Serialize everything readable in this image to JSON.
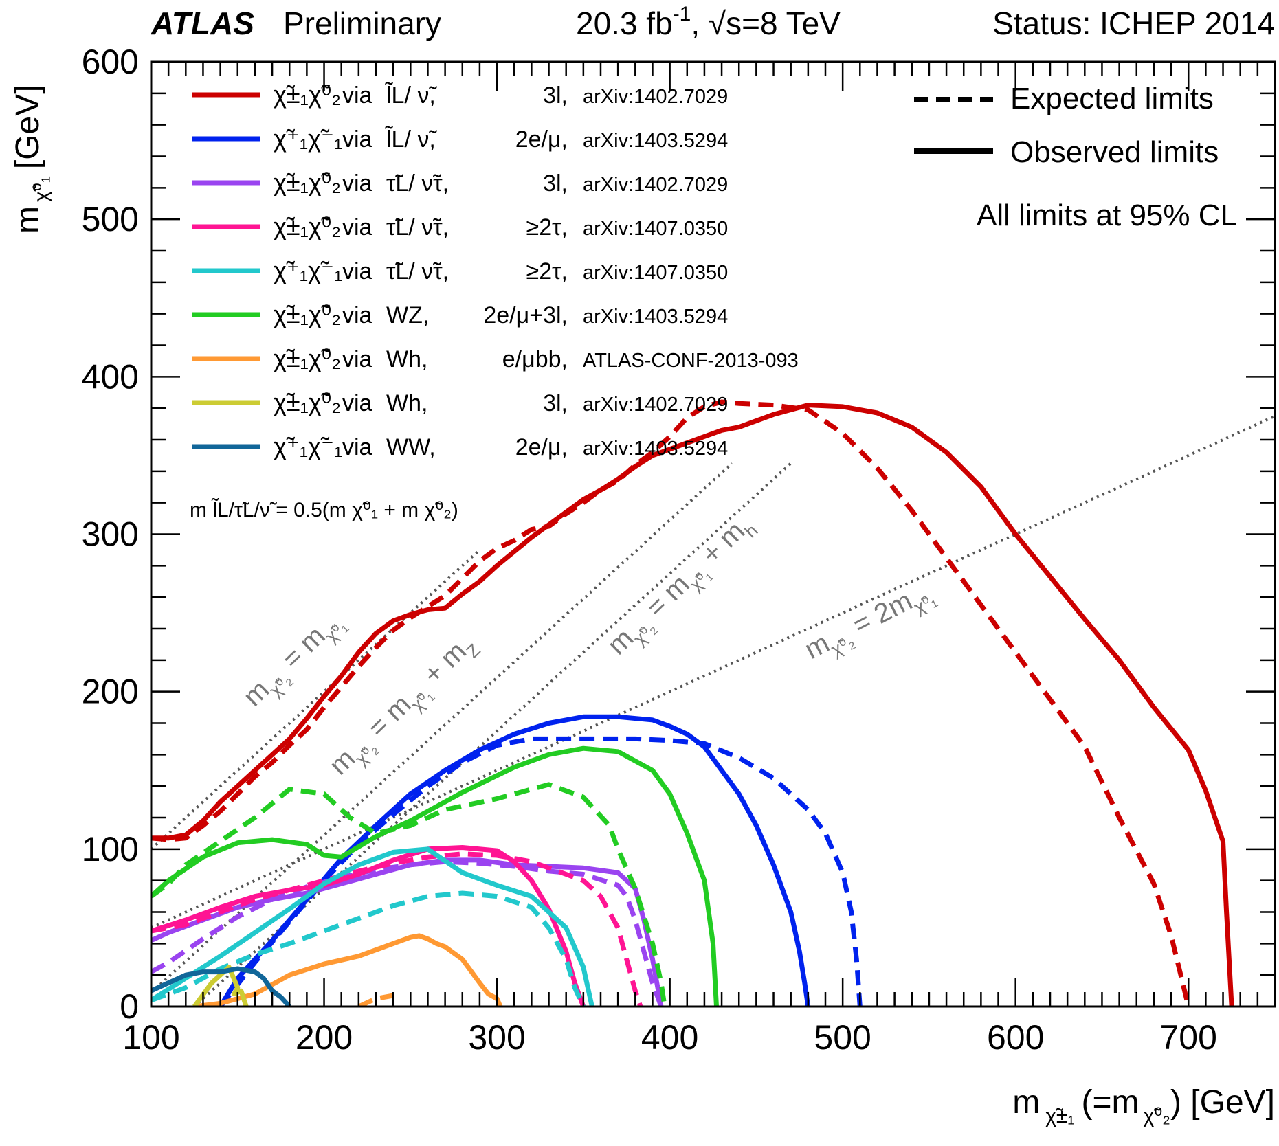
{
  "header": {
    "atlas": "ATLAS",
    "preliminary": "Preliminary",
    "lumi_base": "20.3 fb",
    "lumi_exp": "-1",
    "energy": ", √s=8 TeV",
    "status": "Status: ICHEP 2014"
  },
  "chart_data": {
    "type": "line",
    "title": "ATLAS Preliminary 20.3 fb-1, √s=8 TeV Status: ICHEP 2014",
    "xlabel": "m χ̃±₁ (=m χ̃⁰₂) [GeV]",
    "ylabel": "m χ̃⁰₁ [GeV]",
    "xlim": [
      100,
      750
    ],
    "ylim": [
      0,
      600
    ],
    "xticks": [
      100,
      200,
      300,
      400,
      500,
      600,
      700
    ],
    "xtick_labels": [
      "100",
      "200",
      "300",
      "400",
      "500",
      "600",
      "700"
    ],
    "yticks": [
      0,
      100,
      200,
      300,
      400,
      500,
      600
    ],
    "ytick_labels": [
      "0",
      "100",
      "200",
      "300",
      "400",
      "500",
      "600"
    ],
    "style_legend": {
      "expected": "Expected limits",
      "observed": "Observed limits",
      "cl_note": "All limits at 95% CL"
    },
    "legend": [
      {
        "process": "χ̃±₁χ̃⁰₂",
        "via": "via",
        "mediator": "l̃L/ ν̃,",
        "channel": "3l,",
        "ref": "arXiv:1402.7029",
        "color": "#cc0000"
      },
      {
        "process": "χ̃⁺₁χ̃⁻₁",
        "via": "via",
        "mediator": "l̃L/ ν̃,",
        "channel": "2e/μ,",
        "ref": "arXiv:1403.5294",
        "color": "#0022ee"
      },
      {
        "process": "χ̃±₁χ̃⁰₂",
        "via": "via",
        "mediator": "τ̃L/ ν̃τ,",
        "channel": "3l,",
        "ref": "arXiv:1402.7029",
        "color": "#9a44f0"
      },
      {
        "process": "χ̃±₁χ̃⁰₂",
        "via": "via",
        "mediator": "τ̃L/ ν̃τ,",
        "channel": "≥2τ,",
        "ref": "arXiv:1407.0350",
        "color": "#ff1493"
      },
      {
        "process": "χ̃⁺₁χ̃⁻₁",
        "via": "via",
        "mediator": "τ̃L/ ν̃τ,",
        "channel": "≥2τ,",
        "ref": "arXiv:1407.0350",
        "color": "#22c8cc"
      },
      {
        "process": "χ̃±₁χ̃⁰₂",
        "via": "via",
        "mediator": "WZ,",
        "channel": "2e/μ+3l,",
        "ref": "arXiv:1403.5294",
        "color": "#22cc22"
      },
      {
        "process": "χ̃±₁χ̃⁰₂",
        "via": "via",
        "mediator": "Wh,",
        "channel": "e/μbb,",
        "ref": "ATLAS-CONF-2013-093",
        "color": "#ff9933"
      },
      {
        "process": "χ̃±₁χ̃⁰₂",
        "via": "via",
        "mediator": "Wh,",
        "channel": "3l,",
        "ref": "arXiv:1402.7029",
        "color": "#cccc33"
      },
      {
        "process": "χ̃⁺₁χ̃⁻₁",
        "via": "via",
        "mediator": "WW,",
        "channel": "2e/μ,",
        "ref": "arXiv:1403.5294",
        "color": "#116699"
      }
    ],
    "slepton_note": "m l̃L/τ̃L/ν̃ = 0.5(m χ̃⁰₁ + m χ̃⁰₂)",
    "kinematic_lines": [
      {
        "label": "mχ̃⁰₂ = mχ̃⁰₁",
        "x": [
          100,
          290
        ],
        "y": [
          100,
          290
        ]
      },
      {
        "label": "mχ̃⁰₂ = mχ̃⁰₁ + mZ",
        "x": [
          100,
          436
        ],
        "y": [
          8.8,
          345
        ]
      },
      {
        "label": "mχ̃⁰₂ = mχ̃⁰₁ + mh",
        "x": [
          125,
          470
        ],
        "y": [
          0,
          345
        ]
      },
      {
        "label": "mχ̃⁰₂ = 2mχ̃⁰₁",
        "x": [
          100,
          750
        ],
        "y": [
          50,
          375
        ]
      }
    ],
    "series": [
      {
        "name": "slepton 3l expected",
        "color": "#cc0000",
        "style": "dashed",
        "x": [
          100,
          110,
          120,
          130,
          140,
          150,
          160,
          170,
          180,
          190,
          200,
          210,
          220,
          230,
          240,
          250,
          260,
          270,
          280,
          290,
          300,
          310,
          320,
          330,
          340,
          350,
          360,
          370,
          380,
          390,
          400,
          410,
          420,
          430,
          440,
          460,
          480,
          500,
          520,
          540,
          560,
          580,
          600,
          620,
          640,
          660,
          680,
          690,
          700
        ],
        "y": [
          107,
          106,
          107,
          115,
          124,
          135,
          146,
          155,
          166,
          176,
          190,
          203,
          216,
          228,
          239,
          247,
          254,
          261,
          272,
          283,
          291,
          296,
          303,
          305,
          313,
          320,
          328,
          334,
          344,
          352,
          362,
          374,
          381,
          384,
          383,
          382,
          379,
          364,
          342,
          315,
          285,
          255,
          225,
          195,
          165,
          120,
          78,
          45,
          0
        ]
      },
      {
        "name": "slepton 3l observed",
        "color": "#cc0000",
        "style": "solid",
        "x": [
          100,
          110,
          120,
          130,
          140,
          150,
          160,
          170,
          180,
          190,
          200,
          210,
          220,
          230,
          240,
          250,
          260,
          270,
          280,
          290,
          300,
          310,
          320,
          330,
          340,
          350,
          360,
          370,
          380,
          390,
          400,
          410,
          420,
          430,
          440,
          460,
          480,
          500,
          520,
          540,
          560,
          580,
          600,
          620,
          640,
          660,
          680,
          700,
          710,
          720,
          722,
          725
        ],
        "y": [
          107,
          107,
          109,
          118,
          130,
          140,
          150,
          160,
          170,
          183,
          197,
          210,
          225,
          237,
          245,
          249,
          252,
          253,
          262,
          270,
          280,
          289,
          298,
          306,
          314,
          322,
          328,
          335,
          343,
          350,
          354,
          358,
          362,
          366,
          368,
          376,
          382,
          381,
          377,
          368,
          352,
          330,
          300,
          273,
          246,
          220,
          190,
          163,
          137,
          105,
          60,
          0
        ]
      },
      {
        "name": "slepton 2l expected",
        "color": "#0022ee",
        "style": "dashed",
        "x": [
          140,
          160,
          180,
          200,
          220,
          240,
          260,
          280,
          300,
          320,
          340,
          360,
          380,
          400,
          420,
          440,
          460,
          480,
          490,
          500,
          505,
          508,
          510
        ],
        "y": [
          0,
          28,
          54,
          80,
          103,
          122,
          140,
          155,
          166,
          170,
          170,
          170,
          170,
          169,
          167,
          158,
          145,
          125,
          110,
          85,
          60,
          30,
          0
        ]
      },
      {
        "name": "slepton 2l observed",
        "color": "#0022ee",
        "style": "solid",
        "x": [
          140,
          150,
          170,
          190,
          210,
          230,
          250,
          270,
          290,
          310,
          330,
          350,
          370,
          390,
          400,
          410,
          420,
          430,
          440,
          450,
          460,
          470,
          475,
          478,
          480
        ],
        "y": [
          0,
          18,
          42,
          68,
          94,
          115,
          135,
          150,
          163,
          173,
          180,
          184,
          184,
          182,
          178,
          173,
          165,
          150,
          135,
          115,
          90,
          60,
          35,
          15,
          0
        ]
      },
      {
        "name": "stau 3l expected",
        "color": "#9a44f0",
        "style": "dashed",
        "x": [
          100,
          110,
          130,
          150,
          170,
          190,
          210,
          230,
          250,
          270,
          290,
          310,
          330,
          350,
          370,
          375,
          380,
          385,
          390,
          395
        ],
        "y": [
          22,
          28,
          43,
          57,
          68,
          76,
          82,
          87,
          90,
          92,
          91,
          89,
          86,
          84,
          77,
          70,
          55,
          35,
          15,
          0
        ]
      },
      {
        "name": "stau 3l observed",
        "color": "#9a44f0",
        "style": "solid",
        "x": [
          100,
          110,
          130,
          150,
          170,
          190,
          210,
          230,
          250,
          270,
          290,
          310,
          330,
          350,
          370,
          380,
          385,
          390,
          395
        ],
        "y": [
          42,
          47,
          55,
          63,
          68,
          72,
          78,
          84,
          90,
          93,
          93,
          90,
          89,
          88,
          85,
          75,
          55,
          30,
          0
        ]
      },
      {
        "name": "stau 2tau C1N2 expected",
        "color": "#ff1493",
        "style": "dashed",
        "x": [
          100,
          120,
          140,
          160,
          180,
          200,
          220,
          240,
          260,
          280,
          300,
          320,
          340,
          350,
          360,
          370,
          375,
          380,
          383
        ],
        "y": [
          48,
          52,
          60,
          68,
          74,
          80,
          86,
          91,
          95,
          97,
          96,
          92,
          84,
          80,
          70,
          50,
          30,
          10,
          0
        ]
      },
      {
        "name": "stau 2tau C1N2 observed",
        "color": "#ff1493",
        "style": "solid",
        "x": [
          100,
          120,
          140,
          160,
          180,
          200,
          220,
          240,
          260,
          280,
          300,
          310,
          320,
          330,
          340,
          345,
          350
        ],
        "y": [
          48,
          55,
          63,
          70,
          74,
          77,
          84,
          93,
          100,
          101,
          99,
          92,
          80,
          62,
          35,
          15,
          0
        ]
      },
      {
        "name": "stau 2tau C1C1 expected",
        "color": "#22c8cc",
        "style": "dashed",
        "x": [
          100,
          120,
          140,
          160,
          180,
          200,
          220,
          240,
          260,
          280,
          300,
          320,
          330,
          340,
          345,
          350
        ],
        "y": [
          4,
          12,
          24,
          33,
          40,
          48,
          56,
          64,
          70,
          72,
          70,
          63,
          50,
          30,
          12,
          0
        ]
      },
      {
        "name": "stau 2tau C1C1 observed",
        "color": "#22c8cc",
        "style": "solid",
        "x": [
          100,
          120,
          140,
          160,
          180,
          200,
          220,
          240,
          260,
          280,
          300,
          320,
          340,
          350,
          355
        ],
        "y": [
          4,
          18,
          32,
          47,
          62,
          78,
          90,
          98,
          100,
          85,
          77,
          70,
          50,
          25,
          0
        ]
      },
      {
        "name": "WZ expected",
        "color": "#22cc22",
        "style": "dashed",
        "x": [
          100,
          110,
          120,
          140,
          160,
          180,
          200,
          215,
          230,
          250,
          270,
          300,
          330,
          350,
          365,
          370,
          380,
          390,
          395,
          397
        ],
        "y": [
          70,
          78,
          90,
          105,
          120,
          138,
          135,
          120,
          110,
          115,
          125,
          132,
          141,
          133,
          115,
          100,
          75,
          40,
          15,
          0
        ]
      },
      {
        "name": "WZ observed",
        "color": "#22cc22",
        "style": "solid",
        "x": [
          100,
          110,
          130,
          150,
          170,
          190,
          200,
          210,
          230,
          250,
          280,
          310,
          330,
          350,
          370,
          390,
          400,
          410,
          420,
          425,
          427
        ],
        "y": [
          70,
          80,
          95,
          104,
          106,
          103,
          96,
          95,
          108,
          118,
          136,
          152,
          160,
          164,
          162,
          150,
          135,
          110,
          80,
          40,
          0
        ]
      },
      {
        "name": "Wh e/mubb observed",
        "color": "#ff9933",
        "style": "solid",
        "x": [
          125,
          140,
          160,
          180,
          200,
          220,
          240,
          250,
          255,
          260,
          265,
          270,
          280,
          290,
          295,
          300,
          302
        ],
        "y": [
          0,
          2,
          8,
          20,
          27,
          32,
          40,
          44,
          45,
          43,
          40,
          38,
          30,
          15,
          8,
          5,
          0
        ]
      },
      {
        "name": "Wh e/mubb expected",
        "color": "#ff9933",
        "style": "dashed",
        "x": [
          220,
          230,
          240
        ],
        "y": [
          0,
          5,
          7
        ]
      },
      {
        "name": "Wh 3l observed",
        "color": "#cccc33",
        "style": "solid",
        "x": [
          125,
          135,
          145,
          150,
          148,
          152,
          155
        ],
        "y": [
          0,
          15,
          25,
          12,
          8,
          10,
          0
        ]
      },
      {
        "name": "WW observed",
        "color": "#116699",
        "style": "solid",
        "x": [
          100,
          110,
          120,
          130,
          140,
          150,
          160,
          165,
          170,
          175,
          180
        ],
        "y": [
          10,
          15,
          20,
          22,
          22,
          24,
          22,
          18,
          10,
          6,
          0
        ]
      }
    ]
  }
}
